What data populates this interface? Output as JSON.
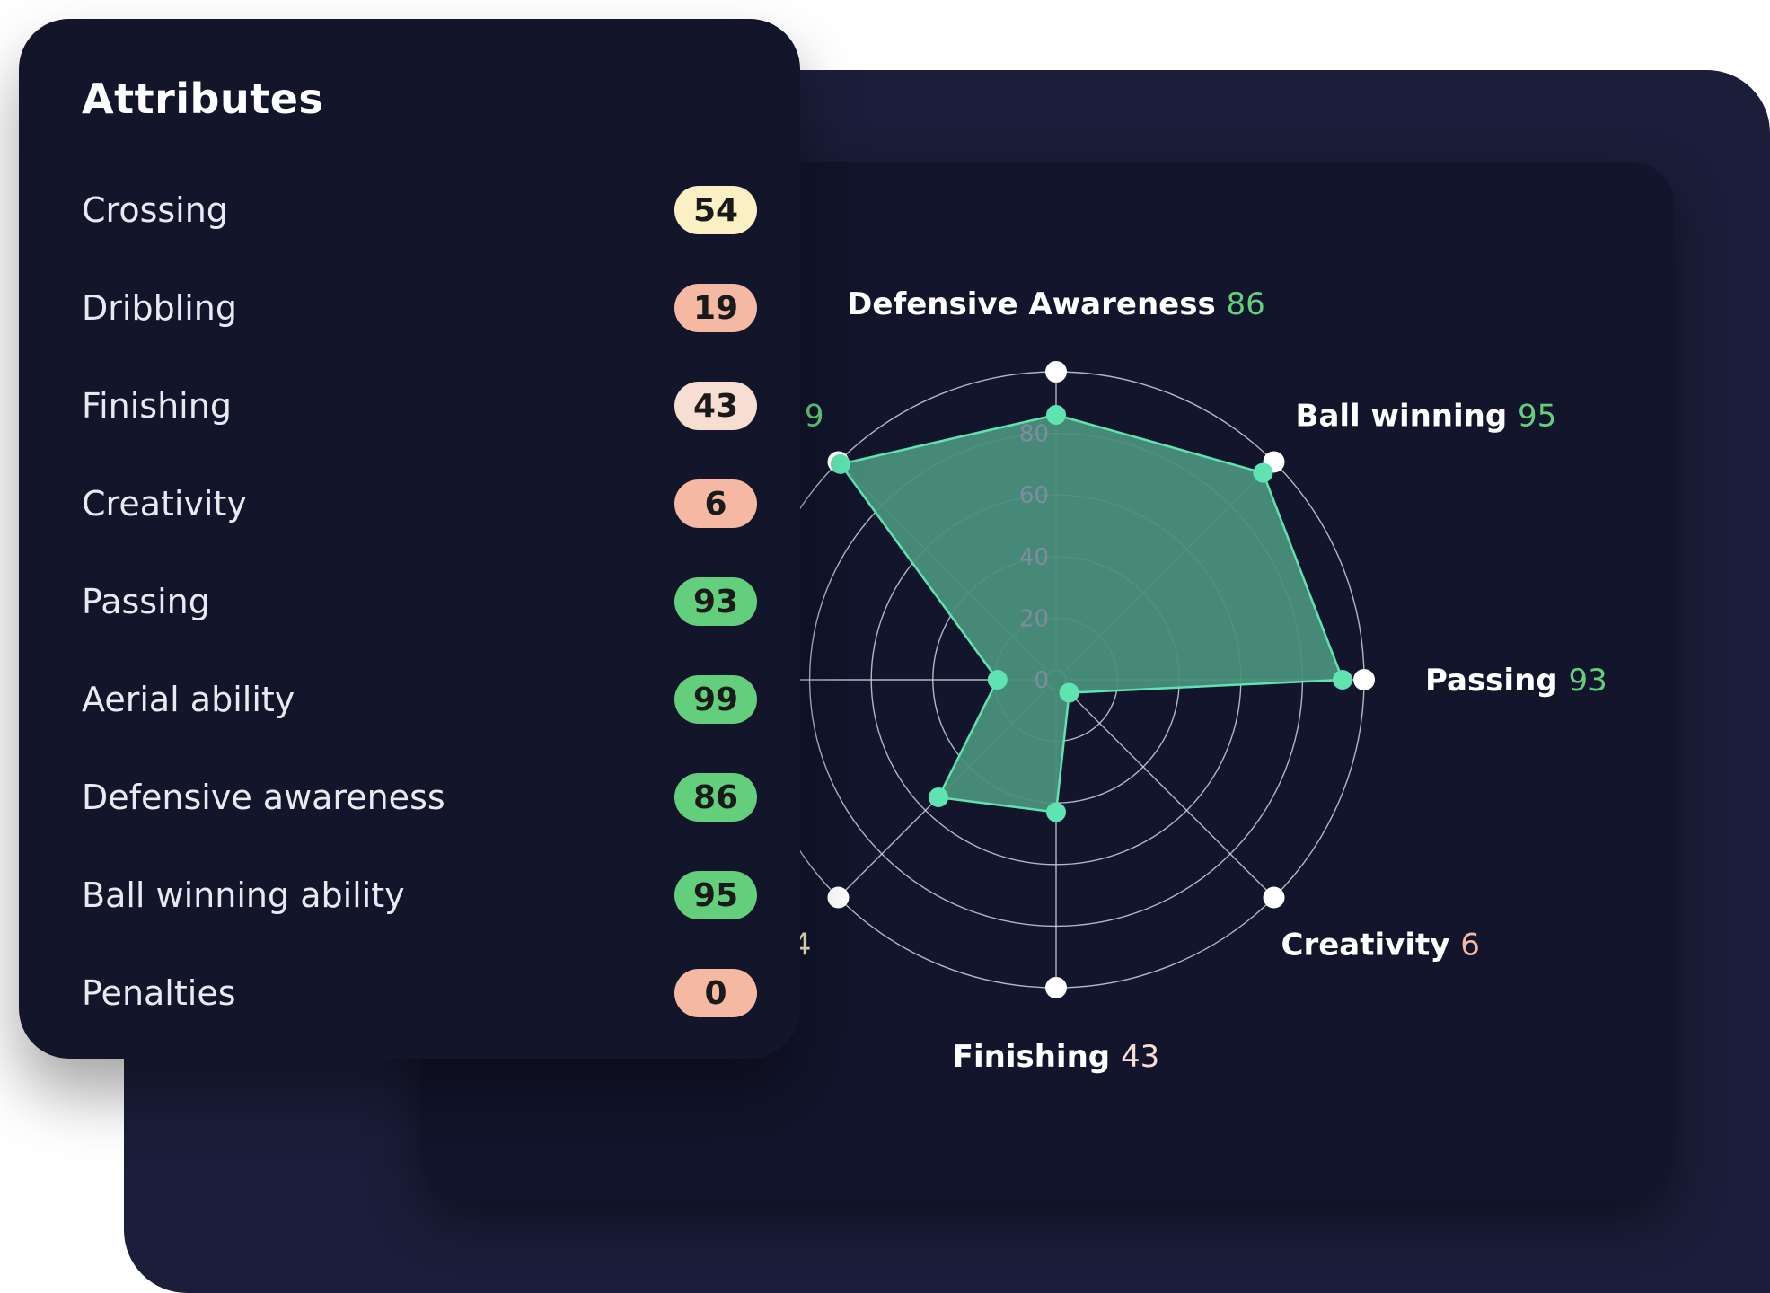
{
  "attributes_panel": {
    "title": "Attributes",
    "items": [
      {
        "label": "Crossing",
        "value": "54",
        "color": "#fbf0c3"
      },
      {
        "label": "Dribbling",
        "value": "19",
        "color": "#f4b8a3"
      },
      {
        "label": "Finishing",
        "value": "43",
        "color": "#f8ddd2"
      },
      {
        "label": "Creativity",
        "value": "6",
        "color": "#f4b8a3"
      },
      {
        "label": "Passing",
        "value": "93",
        "color": "#63cf7c"
      },
      {
        "label": "Aerial ability",
        "value": "99",
        "color": "#63cf7c"
      },
      {
        "label": "Defensive awareness",
        "value": "86",
        "color": "#63cf7c"
      },
      {
        "label": "Ball winning ability",
        "value": "95",
        "color": "#63cf7c"
      },
      {
        "label": "Penalties",
        "value": "0",
        "color": "#f4b8a3"
      }
    ]
  },
  "chart_data": {
    "type": "radar",
    "r_ticks": [
      "0",
      "20",
      "40",
      "60",
      "80"
    ],
    "r_range": [
      0,
      100
    ],
    "axes": [
      {
        "label": "Defensive Awareness",
        "value": 86,
        "value_text": "86",
        "value_color": "#63cf7c",
        "shown": true
      },
      {
        "label": "Ball winning",
        "value": 95,
        "value_text": "95",
        "value_color": "#63cf7c",
        "shown": true
      },
      {
        "label": "Passing",
        "value": 93,
        "value_text": "93",
        "value_color": "#63cf7c",
        "shown": true
      },
      {
        "label": "Creativity",
        "value": 6,
        "value_text": "6",
        "value_color": "#f4b8a3",
        "shown": true
      },
      {
        "label": "Finishing",
        "value": 43,
        "value_text": "43",
        "value_color": "#f8ddd2",
        "shown": true
      },
      {
        "label": "",
        "value": 54,
        "value_text": "4",
        "value_color": "#fbf0c3",
        "shown": false
      },
      {
        "label": "",
        "value": 19,
        "value_text": "",
        "value_color": "#f4b8a3",
        "shown": false
      },
      {
        "label": "",
        "value": 99,
        "value_text": "9",
        "value_color": "#63cf7c",
        "shown": false
      }
    ],
    "fill_color": "#4a8f7b",
    "stroke_color": "#5fe3b0",
    "point_color": "#5fe3b0"
  }
}
